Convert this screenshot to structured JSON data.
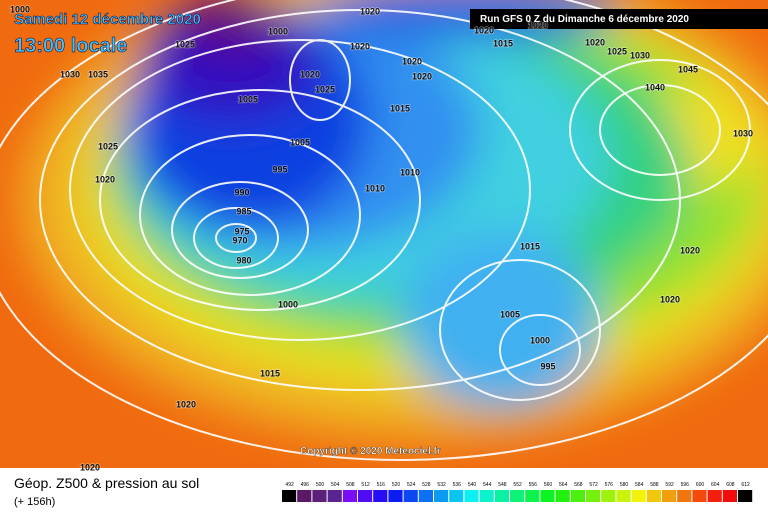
{
  "header": {
    "date": "Samedi 12 décembre 2020",
    "time": "13:00 locale",
    "run": "Run GFS 0 Z du Dimanche 6 décembre 2020"
  },
  "isobar_labels": [
    "1000",
    "1025",
    "1030",
    "1035",
    "1025",
    "1020",
    "1000",
    "1020",
    "1020",
    "1020",
    "1025",
    "1020",
    "1020",
    "1005",
    "1015",
    "1005",
    "995",
    "1010",
    "1010",
    "990",
    "985",
    "975",
    "970",
    "980",
    "1000",
    "1015",
    "1005",
    "1000",
    "995",
    "1015",
    "1020",
    "1020",
    "1020",
    "1025",
    "1030",
    "1045",
    "1040",
    "1030",
    "1020",
    "1020",
    "1015",
    "1020",
    "1020"
  ],
  "copyright": "Copyright © 2020 Meteociel.fr",
  "footer": {
    "title": "Géop. Z500 & pression au sol",
    "lead": "(+ 156h)"
  },
  "legend": {
    "values": [
      492,
      496,
      500,
      504,
      508,
      512,
      516,
      520,
      524,
      528,
      532,
      536,
      540,
      544,
      548,
      552,
      556,
      560,
      564,
      568,
      572,
      576,
      580,
      584,
      588,
      592,
      596,
      600,
      604,
      608,
      612
    ]
  }
}
